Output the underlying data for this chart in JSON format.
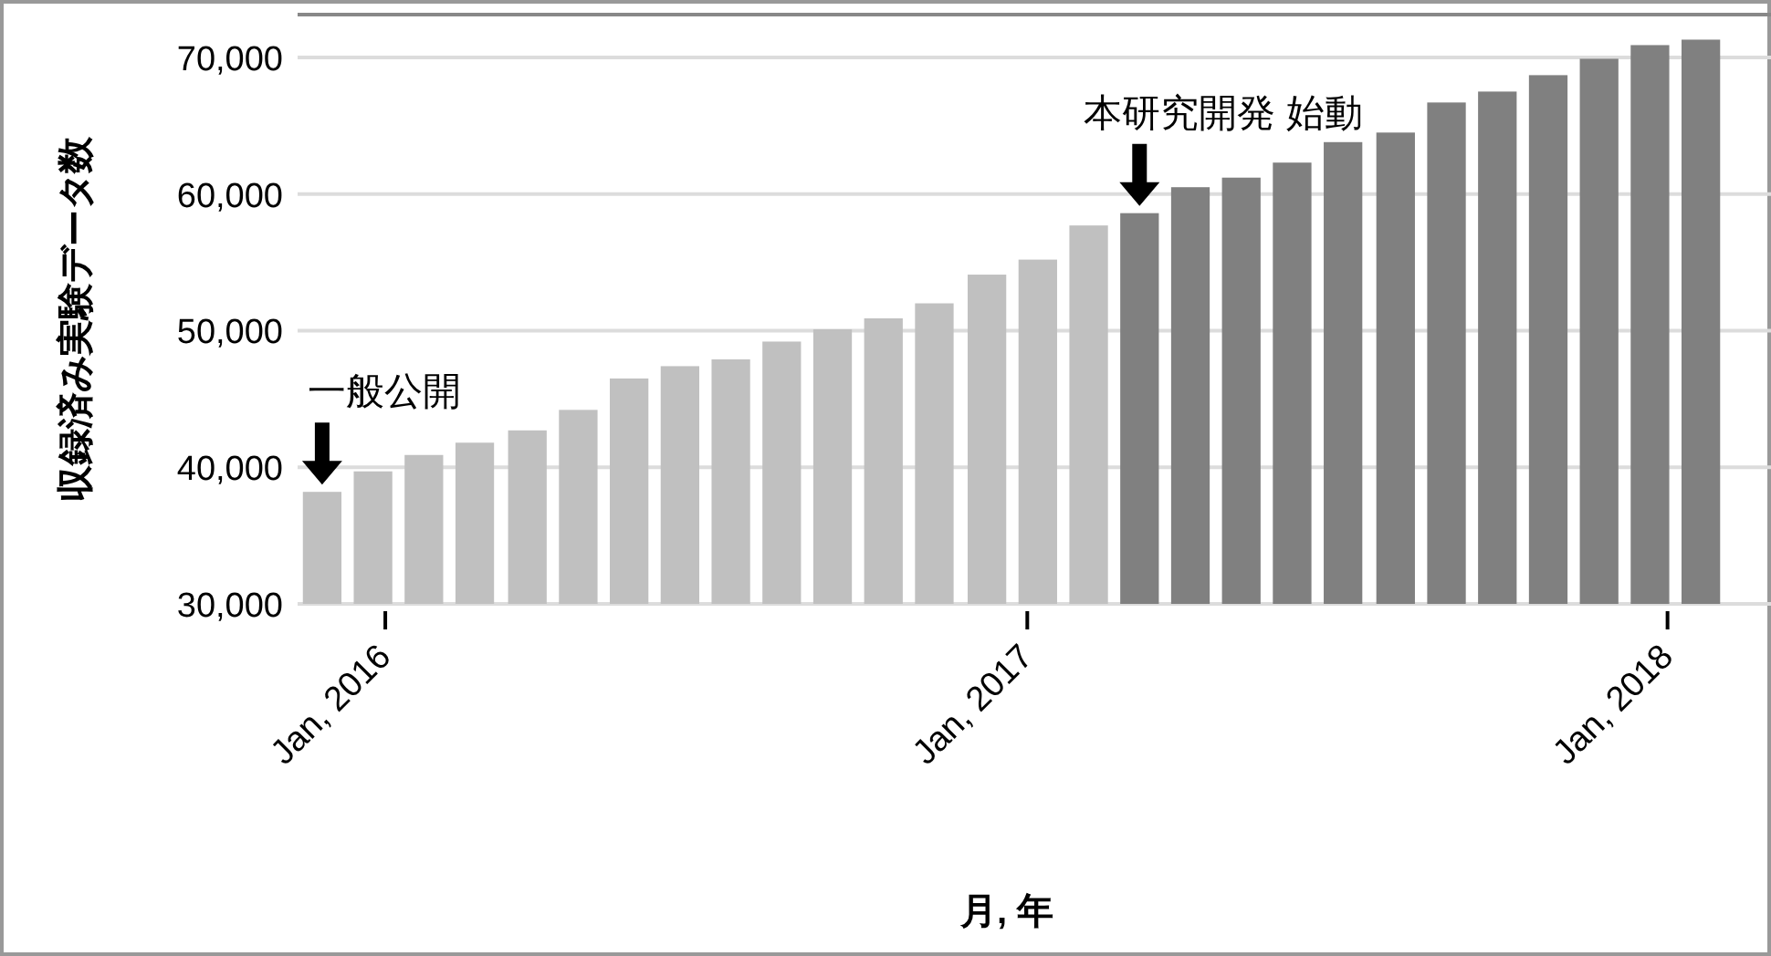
{
  "chart_data": {
    "type": "bar",
    "xlabel": "月, 年",
    "ylabel": "収録済み実験データ数",
    "x": [
      "2015-11-26",
      "2015-12-25",
      "2016-01-23",
      "2016-02-21",
      "2016-03-22",
      "2016-04-20",
      "2016-05-19",
      "2016-06-17",
      "2016-07-16",
      "2016-08-14",
      "2016-09-12",
      "2016-10-11",
      "2016-11-09",
      "2016-12-09",
      "2017-01-07",
      "2017-02-05",
      "2017-03-06",
      "2017-04-04",
      "2017-05-03",
      "2017-06-01",
      "2017-06-30",
      "2017-07-30",
      "2017-08-28",
      "2017-09-26",
      "2017-10-25",
      "2017-11-23",
      "2017-12-22",
      "2018-01-20"
    ],
    "values": [
      38200,
      39700,
      40900,
      41800,
      42700,
      44200,
      46500,
      47400,
      47900,
      49200,
      50100,
      50900,
      52000,
      54100,
      55200,
      57700,
      58600,
      60500,
      61200,
      62300,
      63800,
      64500,
      66700,
      67500,
      68700,
      69900,
      70900,
      71300
    ],
    "colors": [
      "#c0c0c0",
      "#c0c0c0",
      "#c0c0c0",
      "#c0c0c0",
      "#c0c0c0",
      "#c0c0c0",
      "#c0c0c0",
      "#c0c0c0",
      "#c0c0c0",
      "#c0c0c0",
      "#c0c0c0",
      "#c0c0c0",
      "#c0c0c0",
      "#c0c0c0",
      "#c0c0c0",
      "#c0c0c0",
      "#808080",
      "#808080",
      "#808080",
      "#808080",
      "#808080",
      "#808080",
      "#808080",
      "#808080",
      "#808080",
      "#808080",
      "#808080",
      "#808080"
    ],
    "xlim": [
      "2015-11-12",
      "2018-03-01"
    ],
    "xticks": [
      {
        "value": "2016-01",
        "label": "Jan, 2016"
      },
      {
        "value": "2017-01",
        "label": "Jan, 2017"
      },
      {
        "value": "2018-01",
        "label": "Jan, 2018"
      }
    ],
    "ylim": [
      30000,
      73000
    ],
    "yticks": [
      {
        "value": 30000,
        "label": "30,000"
      },
      {
        "value": 40000,
        "label": "40,000"
      },
      {
        "value": 50000,
        "label": "50,000"
      },
      {
        "value": 60000,
        "label": "60,000"
      },
      {
        "value": 70000,
        "label": "70,000"
      }
    ],
    "grid": "y",
    "annotations": [
      {
        "text": "一般公開",
        "x": "2015-11-26",
        "y": 38200
      },
      {
        "text": "本研究開発 始動",
        "x": "2017-03-06",
        "y": 58600
      }
    ]
  }
}
